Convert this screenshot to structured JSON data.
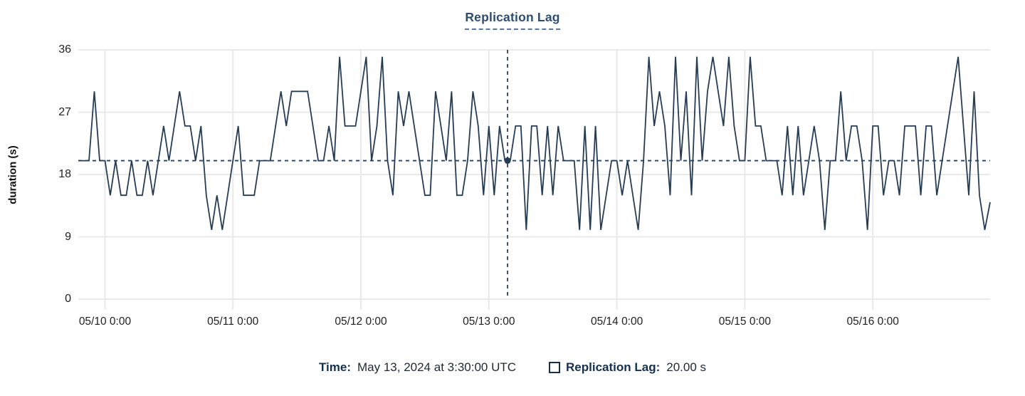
{
  "title": "Replication Lag",
  "colors": {
    "line": "#263c55",
    "title_text": "#2f4d73",
    "grid": "#e9e9e9",
    "crosshair": "#2c4158",
    "legend_label": "#16304f",
    "legend_value": "#1e2935",
    "tick_text": "#1f1f1f"
  },
  "tooltip": {
    "time_label": "Time:",
    "time_value": "May 13, 2024 at 3:30:00 UTC",
    "series_label": "Replication Lag:",
    "series_value": "20.00 s"
  },
  "chart_data": {
    "type": "line",
    "title": "Replication Lag",
    "xlabel": "",
    "ylabel": "duration (s)",
    "ylim": [
      0,
      36
    ],
    "y_ticks": [
      0,
      9,
      18,
      27,
      36
    ],
    "grid": true,
    "x_tick_hours": [
      0,
      24,
      48,
      72,
      96,
      120,
      144
    ],
    "x_tick_labels": [
      "05/10 0:00",
      "05/11 0:00",
      "05/12 0:00",
      "05/13 0:00",
      "05/14 0:00",
      "05/15 0:00",
      "05/16 0:00"
    ],
    "x_domain_hours": [
      -5,
      166
    ],
    "threshold": {
      "value": 20,
      "style": "dashed"
    },
    "crosshair": {
      "hour": 75.5,
      "value": 20,
      "time": "May 13, 2024 at 3:30:00 UTC"
    },
    "series": [
      {
        "name": "Replication Lag",
        "unit": "s",
        "start_hour": -5,
        "interval_hours": 1,
        "values": [
          20,
          20,
          20,
          30,
          20,
          20,
          15,
          20,
          15,
          15,
          20,
          15,
          15,
          20,
          15,
          20,
          25,
          20,
          25,
          30,
          25,
          25,
          20,
          25,
          15,
          10,
          15,
          10,
          15,
          20,
          25,
          15,
          15,
          15,
          20,
          20,
          20,
          25,
          30,
          25,
          30,
          30,
          30,
          30,
          25,
          20,
          20,
          25,
          20,
          35,
          25,
          25,
          25,
          30,
          35,
          20,
          25,
          35,
          20,
          15,
          30,
          25,
          30,
          25,
          20,
          15,
          15,
          30,
          25,
          20,
          30,
          15,
          15,
          20,
          30,
          25,
          15,
          25,
          15,
          25,
          20,
          20,
          25,
          25,
          10,
          25,
          25,
          15,
          25,
          15,
          25,
          20,
          20,
          20,
          10,
          25,
          10,
          25,
          10,
          15,
          20,
          20,
          15,
          20,
          15,
          10,
          20,
          35,
          25,
          30,
          25,
          15,
          35,
          20,
          30,
          15,
          35,
          20,
          30,
          35,
          30,
          25,
          35,
          25,
          20,
          20,
          35,
          25,
          25,
          20,
          20,
          20,
          15,
          25,
          15,
          25,
          15,
          20,
          25,
          20,
          10,
          20,
          20,
          30,
          20,
          25,
          25,
          20,
          10,
          25,
          25,
          15,
          20,
          20,
          15,
          25,
          25,
          25,
          15,
          25,
          25,
          15,
          20,
          25,
          30,
          35,
          25,
          15,
          30,
          15,
          10,
          14
        ]
      }
    ]
  }
}
